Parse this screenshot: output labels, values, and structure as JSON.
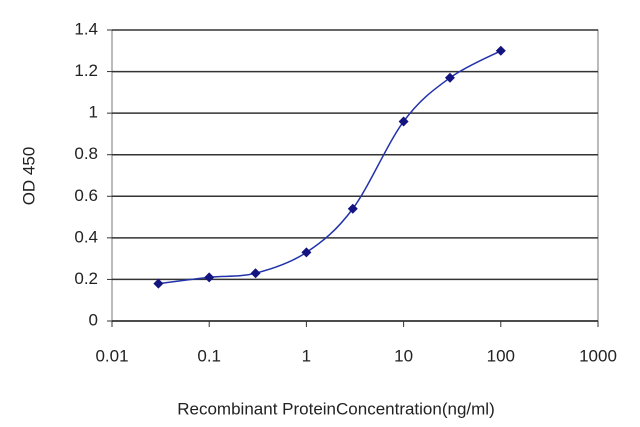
{
  "chart_data": {
    "type": "line",
    "x_label": "Recombinant ProteinConcentration(ng/ml)",
    "y_label": "OD 450",
    "x": [
      0.03,
      0.1,
      0.3,
      1,
      3,
      10,
      30,
      100
    ],
    "series": [
      {
        "color": "#2233aa",
        "values": [
          0.18,
          0.21,
          0.23,
          0.33,
          0.54,
          0.96,
          1.17,
          1.3
        ]
      }
    ],
    "xscale": "log",
    "xlim": [
      0.01,
      1000
    ],
    "xticks": [
      0.01,
      0.1,
      1,
      10,
      100,
      1000
    ],
    "ylim": [
      0,
      1.4
    ],
    "yticks": [
      0,
      0.2,
      0.4,
      0.6,
      0.8,
      1,
      1.2,
      1.4
    ],
    "grid": true
  }
}
